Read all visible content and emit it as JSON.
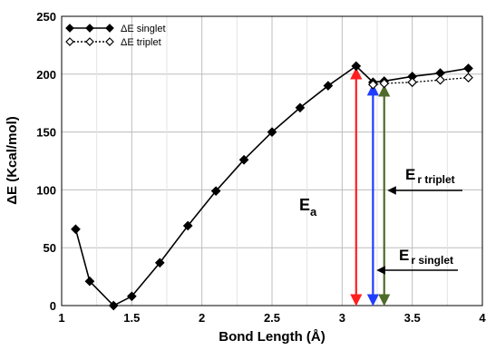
{
  "chart_data": {
    "type": "line",
    "xlabel": "Bond Length (Å)",
    "ylabel": "ΔE (Kcal/mol)",
    "xlim": [
      1,
      4
    ],
    "ylim": [
      0,
      250
    ],
    "xticks": [
      1,
      1.5,
      2,
      2.5,
      3,
      3.5,
      4
    ],
    "xtick_labels": [
      "1",
      "1.5",
      "2",
      "2.5",
      "3",
      "3.5",
      "4"
    ],
    "yticks": [
      0,
      50,
      100,
      150,
      200,
      250
    ],
    "ytick_labels": [
      "0",
      "50",
      "100",
      "150",
      "200",
      "250"
    ],
    "grid": true,
    "legend_position": "top-left",
    "series": [
      {
        "name": "ΔE singlet",
        "marker": "filled-diamond",
        "line_style": "solid",
        "color": "#000000",
        "x": [
          1.1,
          1.2,
          1.37,
          1.5,
          1.7,
          1.9,
          2.1,
          2.3,
          2.5,
          2.7,
          2.9,
          3.1,
          3.22,
          3.3,
          3.5,
          3.7,
          3.9
        ],
        "y": [
          66,
          21,
          0,
          8,
          37,
          69,
          99,
          126,
          150,
          171,
          190,
          207,
          193,
          194,
          198,
          201,
          205
        ]
      },
      {
        "name": "ΔE triplet",
        "marker": "open-diamond",
        "line_style": "dotted",
        "color": "#000000",
        "x": [
          3.22,
          3.3,
          3.5,
          3.7,
          3.9
        ],
        "y": [
          191,
          192,
          193,
          195,
          197
        ]
      }
    ],
    "annotations": {
      "ea": {
        "label_main": "E",
        "label_sub": "a",
        "color": "#ff1f1f",
        "x": 3.1,
        "y_from": 0,
        "y_to": 207
      },
      "er_singlet": {
        "label_main": "E",
        "label_sub": "r singlet",
        "color": "#1f3dff",
        "x": 3.22,
        "y_from": 0,
        "y_to": 193
      },
      "er_triplet": {
        "label_main": "E",
        "label_sub": "r triplet",
        "color": "#4f6b2a",
        "x": 3.3,
        "y_from": 0,
        "y_to": 192
      }
    },
    "colors": {
      "ea_arrow": "#ff1f1f",
      "er_singlet_arrow": "#1f3dff",
      "er_triplet_arrow": "#4f6b2a",
      "series_line": "#000000",
      "grid": "#bdbdbd"
    }
  }
}
